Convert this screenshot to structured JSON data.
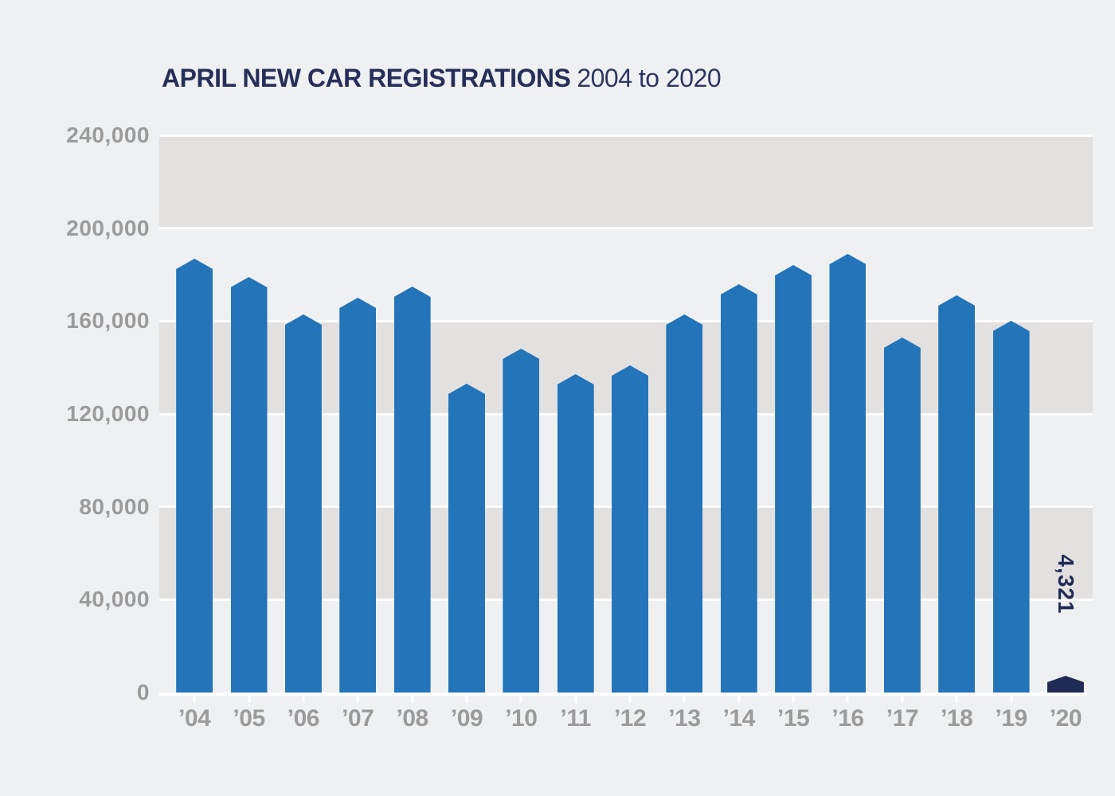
{
  "header": {
    "title": "APRIL NEW CAR REGISTRATIONS",
    "subtitle": "2004 to 2020"
  },
  "colors": {
    "background": "#eef0f2",
    "band_dark": "#e3e1e0",
    "gridline": "#ffffff",
    "bar_blue": "#2374b9",
    "bar_highlight_navy": "#1f2a55",
    "axis_text_gray": "#9b9b9b",
    "title_navy": "#262f58"
  },
  "chart_data": {
    "type": "bar",
    "title": "APRIL NEW CAR REGISTRATIONS 2004 to 2020",
    "xlabel": "",
    "ylabel": "",
    "categories": [
      "’04",
      "’05",
      "’06",
      "’07",
      "’08",
      "’09",
      "’10",
      "’11",
      "’12",
      "’13",
      "’14",
      "’15",
      "’16",
      "’17",
      "’18",
      "’19",
      "’20"
    ],
    "values": [
      187000,
      179000,
      163000,
      170000,
      175000,
      133000,
      148000,
      137000,
      141000,
      163000,
      176000,
      184000,
      189000,
      153000,
      171000,
      160000,
      4321
    ],
    "ylim": [
      0,
      240000
    ],
    "yticks": [
      240000,
      200000,
      160000,
      120000,
      80000,
      40000,
      0
    ],
    "ytick_labels": [
      "240,000",
      "200,000",
      "160,000",
      "120,000",
      "80,000",
      "40,000",
      "0"
    ],
    "grid": "horizontal-bands-alternating",
    "legend": "none",
    "highlight_index": 16,
    "highlight_label": "4,321"
  }
}
